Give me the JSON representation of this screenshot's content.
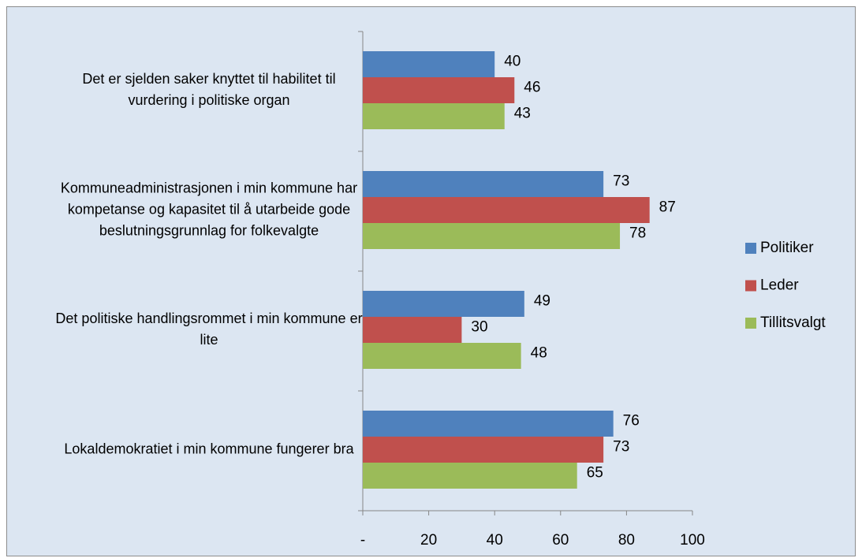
{
  "chart_data": {
    "type": "bar",
    "orientation": "horizontal",
    "categories": [
      "Det er sjelden saker knyttet til habilitet til vurdering i politiske organ",
      "Kommuneadministrasjonen i min kommune har kompetanse og kapasitet til å utarbeide gode beslutningsgrunnlag for folkevalgte",
      "Det politiske handlingsrommet i min kommune er lite",
      "Lokaldemokratiet i min kommune fungerer bra"
    ],
    "series": [
      {
        "name": "Politiker",
        "color": "#4f81bd",
        "values": [
          40,
          73,
          49,
          76
        ]
      },
      {
        "name": "Leder",
        "color": "#c0504d",
        "values": [
          46,
          87,
          30,
          73
        ]
      },
      {
        "name": "Tillitsvalgt",
        "color": "#9bbb59",
        "values": [
          43,
          78,
          48,
          65
        ]
      }
    ],
    "xlim": [
      0,
      100
    ],
    "xticks": [
      {
        "value": 0,
        "label": "-"
      },
      20,
      40,
      60,
      80,
      100
    ],
    "legend": "right"
  }
}
